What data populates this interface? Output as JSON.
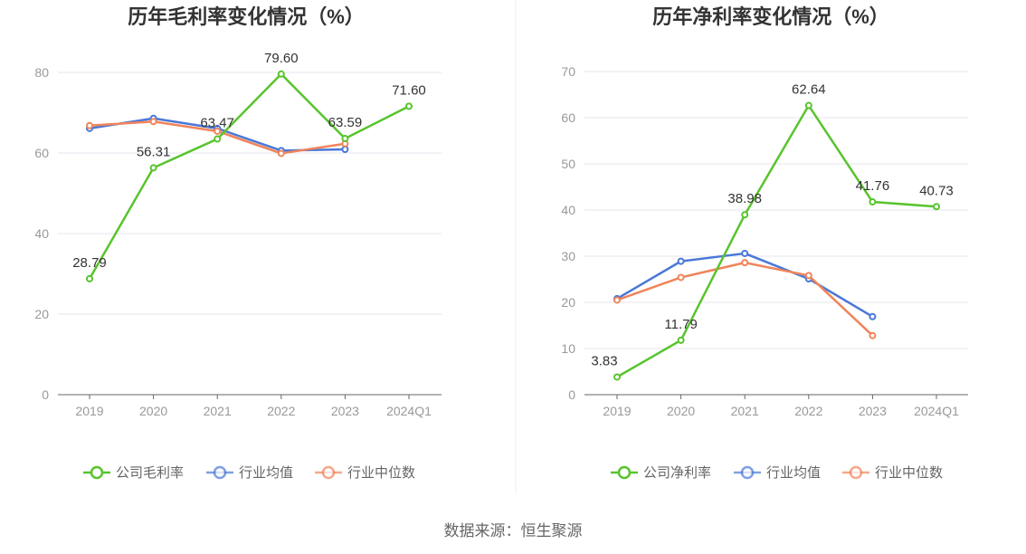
{
  "colors": {
    "company": "#58c42c",
    "avg": "#4a78d8",
    "median": "#f0845a",
    "grid": "#e4e6ee",
    "axis": "#666666"
  },
  "source": "数据来源：恒生聚源",
  "chart_data": [
    {
      "type": "line",
      "title": "历年毛利率变化情况（%）",
      "categories": [
        "2019",
        "2020",
        "2021",
        "2022",
        "2023",
        "2024Q1"
      ],
      "ylim": [
        0,
        80
      ],
      "yticks": [
        0,
        20,
        40,
        60,
        80
      ],
      "grid": true,
      "legend_position": "bottom",
      "series": [
        {
          "name": "公司毛利率",
          "role": "company",
          "values": [
            28.79,
            56.31,
            63.47,
            79.6,
            63.59,
            71.6
          ],
          "labels": [
            "28.79",
            "56.31",
            "63.47",
            "79.60",
            "63.59",
            "71.60"
          ]
        },
        {
          "name": "行业均值",
          "role": "avg",
          "values": [
            66.1,
            68.6,
            66.1,
            60.6,
            60.9,
            null
          ]
        },
        {
          "name": "行业中位数",
          "role": "median",
          "values": [
            66.8,
            67.8,
            65.4,
            59.9,
            62.3,
            null
          ]
        }
      ]
    },
    {
      "type": "line",
      "title": "历年净利率变化情况（%）",
      "categories": [
        "2019",
        "2020",
        "2021",
        "2022",
        "2023",
        "2024Q1"
      ],
      "ylim": [
        0,
        70
      ],
      "yticks": [
        0,
        10,
        20,
        30,
        40,
        50,
        60,
        70
      ],
      "grid": true,
      "legend_position": "bottom",
      "series": [
        {
          "name": "公司净利率",
          "role": "company",
          "values": [
            3.83,
            11.79,
            38.98,
            62.64,
            41.76,
            40.73
          ],
          "labels": [
            "3.83",
            "11.79",
            "38.98",
            "62.64",
            "41.76",
            "40.73"
          ]
        },
        {
          "name": "行业均值",
          "role": "avg",
          "values": [
            20.8,
            28.9,
            30.6,
            25.1,
            16.9,
            null
          ]
        },
        {
          "name": "行业中位数",
          "role": "median",
          "values": [
            20.5,
            25.4,
            28.6,
            25.8,
            12.8,
            null
          ]
        }
      ]
    }
  ]
}
